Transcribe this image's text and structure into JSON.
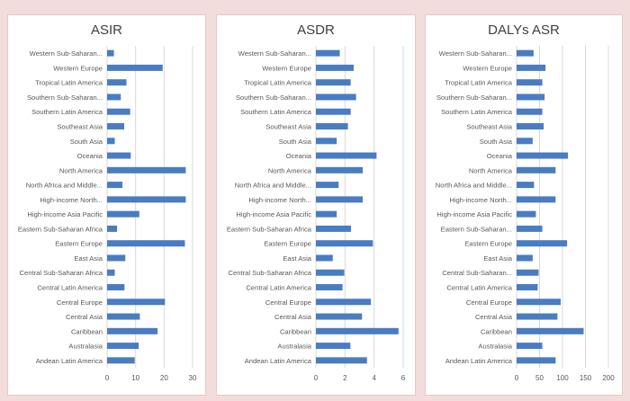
{
  "colors": {
    "bar": "#4a7cc2",
    "grid": "#d9d9d9",
    "text": "#595959"
  },
  "chart_data": [
    {
      "type": "bar",
      "orientation": "horizontal",
      "title": "ASIR",
      "xlim": [
        0,
        30
      ],
      "xticks": [
        "0",
        "10",
        "20",
        "30"
      ],
      "xtick_values": [
        0,
        10,
        20,
        30
      ],
      "categories": [
        "Western Sub-Saharan...",
        "Western Europe",
        "Tropical Latin America",
        "Southern Sub-Saharan...",
        "Southern Latin America",
        "Southeast Asia",
        "South Asia",
        "Oceania",
        "North America",
        "North Africa and Middle...",
        "High-income North...",
        "High-income Asia Pacific",
        "Eastern Sub-Saharan Africa",
        "Eastern Europe",
        "East Asia",
        "Central Sub-Saharan Africa",
        "Central Latin America",
        "Central Europe",
        "Central Asia",
        "Caribbean",
        "Australasia",
        "Andean Latin America"
      ],
      "values": [
        2.4,
        19.5,
        6.8,
        4.8,
        8.1,
        6.0,
        2.7,
        8.3,
        27.6,
        5.4,
        27.6,
        11.3,
        3.5,
        27.3,
        6.4,
        2.7,
        6.1,
        20.3,
        11.5,
        17.7,
        11.1,
        9.7
      ]
    },
    {
      "type": "bar",
      "orientation": "horizontal",
      "title": "ASDR",
      "xlim": [
        0,
        6
      ],
      "xticks": [
        "0",
        "2",
        "4",
        "6"
      ],
      "xtick_values": [
        0,
        2,
        4,
        6
      ],
      "categories": [
        "Western Sub-Saharan...",
        "Western Europe",
        "Tropical Latin America",
        "Southern Sub-Saharan...",
        "Southern Latin America",
        "Southeast Asia",
        "South Asia",
        "Oceania",
        "North America",
        "North Africa and Middle...",
        "High-income North...",
        "High-income Asia Pacific",
        "Eastern Sub-Saharan Africa",
        "Eastern Europe",
        "East Asia",
        "Central Sub-Saharan Africa",
        "Central Latin America",
        "Central Europe",
        "Central Asia",
        "Caribbean",
        "Australasia",
        "Andean Latin America"
      ],
      "values": [
        1.64,
        2.6,
        2.39,
        2.76,
        2.39,
        2.2,
        1.43,
        4.17,
        3.22,
        1.56,
        3.22,
        1.43,
        2.41,
        3.92,
        1.16,
        1.95,
        1.83,
        3.78,
        3.17,
        5.68,
        2.37,
        3.51
      ]
    },
    {
      "type": "bar",
      "orientation": "horizontal",
      "title": "DALYs ASR",
      "xlim": [
        0,
        200
      ],
      "xticks": [
        "0",
        "50",
        "100",
        "150",
        "200"
      ],
      "xtick_values": [
        0,
        50,
        100,
        150,
        200
      ],
      "categories": [
        "Western Sub-Saharan...",
        "Western Europe",
        "Tropical Latin America",
        "Southern Sub-Saharan...",
        "Southern Latin America",
        "Southeast Asia",
        "South Asia",
        "Oceania",
        "North America",
        "North Africa and Middle...",
        "High-income North...",
        "High-income Asia Pacific",
        "Eastern Sub-Saharan...",
        "Eastern Europe",
        "East Asia",
        "Central Sub-Saharan...",
        "Central Latin America",
        "Central Europe",
        "Central Asia",
        "Caribbean",
        "Australasia",
        "Andean Latin America"
      ],
      "values": [
        37,
        63,
        56,
        61,
        56,
        59,
        35,
        112,
        85,
        38,
        85,
        42,
        56,
        110,
        35,
        48,
        46,
        96,
        89,
        146,
        56,
        85
      ]
    }
  ]
}
